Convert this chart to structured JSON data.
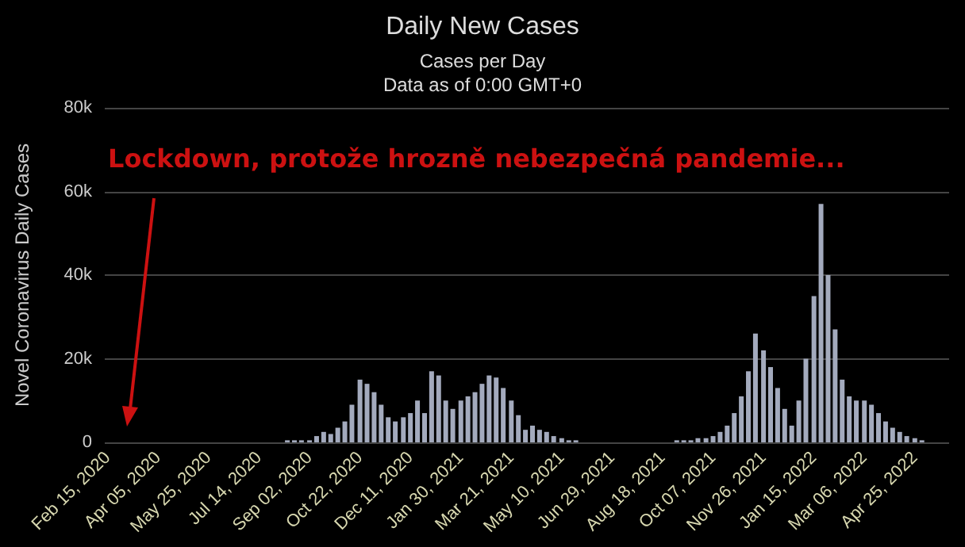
{
  "chart_data": {
    "type": "bar",
    "title": "Daily New Cases",
    "subtitle": "Cases per Day\nData as of 0:00 GMT+0",
    "ylabel": "Novel Coronavirus Daily Cases",
    "annotations": [
      "Lockdown, protože hrozně nebezpečná pandemie..."
    ],
    "x": [
      "2020-02-15",
      "2020-02-22",
      "2020-02-29",
      "2020-03-07",
      "2020-03-14",
      "2020-03-21",
      "2020-03-28",
      "2020-04-05",
      "2020-04-12",
      "2020-04-19",
      "2020-04-26",
      "2020-05-03",
      "2020-05-10",
      "2020-05-17",
      "2020-05-25",
      "2020-06-01",
      "2020-06-08",
      "2020-06-15",
      "2020-06-22",
      "2020-06-29",
      "2020-07-06",
      "2020-07-14",
      "2020-07-21",
      "2020-07-28",
      "2020-08-04",
      "2020-08-11",
      "2020-08-18",
      "2020-08-25",
      "2020-09-02",
      "2020-09-09",
      "2020-09-16",
      "2020-09-23",
      "2020-09-30",
      "2020-10-07",
      "2020-10-14",
      "2020-10-22",
      "2020-10-29",
      "2020-11-05",
      "2020-11-12",
      "2020-11-19",
      "2020-11-26",
      "2020-12-04",
      "2020-12-11",
      "2020-12-18",
      "2020-12-25",
      "2021-01-01",
      "2021-01-08",
      "2021-01-15",
      "2021-01-22",
      "2021-01-30",
      "2021-02-06",
      "2021-02-13",
      "2021-02-20",
      "2021-02-27",
      "2021-03-06",
      "2021-03-13",
      "2021-03-21",
      "2021-03-28",
      "2021-04-04",
      "2021-04-11",
      "2021-04-18",
      "2021-04-25",
      "2021-05-02",
      "2021-05-10",
      "2021-05-17",
      "2021-05-24",
      "2021-05-31",
      "2021-06-07",
      "2021-06-14",
      "2021-06-21",
      "2021-06-29",
      "2021-07-06",
      "2021-07-13",
      "2021-07-20",
      "2021-07-27",
      "2021-08-03",
      "2021-08-10",
      "2021-08-18",
      "2021-08-25",
      "2021-09-01",
      "2021-09-08",
      "2021-09-15",
      "2021-09-22",
      "2021-09-30",
      "2021-10-07",
      "2021-10-14",
      "2021-10-21",
      "2021-10-28",
      "2021-11-04",
      "2021-11-11",
      "2021-11-18",
      "2021-11-26",
      "2021-12-03",
      "2021-12-10",
      "2021-12-17",
      "2021-12-24",
      "2021-12-31",
      "2022-01-07",
      "2022-01-15",
      "2022-01-22",
      "2022-01-29",
      "2022-02-05",
      "2022-02-12",
      "2022-02-19",
      "2022-02-26",
      "2022-03-06",
      "2022-03-13",
      "2022-03-20",
      "2022-03-27",
      "2022-04-03",
      "2022-04-10",
      "2022-04-17",
      "2022-04-25",
      "2022-05-02",
      "2022-05-09"
    ],
    "series": [
      {
        "color": "#a3aabd",
        "values": [
          0,
          0,
          0,
          0,
          0,
          0,
          0,
          0,
          0,
          0,
          0,
          0,
          0,
          0,
          0,
          0,
          0,
          0,
          0,
          0,
          0,
          0,
          0,
          0,
          0,
          500,
          500,
          500,
          500,
          1500,
          2500,
          2000,
          3500,
          5000,
          9000,
          15000,
          14000,
          12000,
          9000,
          6000,
          5000,
          6000,
          7000,
          10000,
          7000,
          17000,
          16000,
          10000,
          8000,
          10000,
          11000,
          12000,
          14000,
          16000,
          15500,
          13000,
          10000,
          6500,
          3000,
          4000,
          3000,
          2500,
          1500,
          1000,
          500,
          500,
          0,
          0,
          0,
          0,
          0,
          0,
          0,
          0,
          0,
          0,
          0,
          0,
          0,
          500,
          500,
          500,
          1000,
          1000,
          1500,
          2500,
          4000,
          7000,
          11000,
          17000,
          26000,
          22000,
          18000,
          13000,
          8000,
          4000,
          10000,
          20000,
          35000,
          57000,
          40000,
          27000,
          15000,
          11000,
          10000,
          10000,
          9000,
          7000,
          5000,
          3500,
          2500,
          1500,
          1000,
          500,
          0
        ]
      }
    ],
    "xlim": [
      "2020-02-12",
      "2022-05-29"
    ],
    "xticks": [
      {
        "value": "2020-02-15",
        "label": "Feb 15, 2020"
      },
      {
        "value": "2020-04-05",
        "label": "Apr 05, 2020"
      },
      {
        "value": "2020-05-25",
        "label": "May 25, 2020"
      },
      {
        "value": "2020-07-14",
        "label": "Jul 14, 2020"
      },
      {
        "value": "2020-09-02",
        "label": "Sep 02, 2020"
      },
      {
        "value": "2020-10-22",
        "label": "Oct 22, 2020"
      },
      {
        "value": "2020-12-11",
        "label": "Dec 11, 2020"
      },
      {
        "value": "2021-01-30",
        "label": "Jan 30, 2021"
      },
      {
        "value": "2021-03-21",
        "label": "Mar 21, 2021"
      },
      {
        "value": "2021-05-10",
        "label": "May 10, 2021"
      },
      {
        "value": "2021-06-29",
        "label": "Jun 29, 2021"
      },
      {
        "value": "2021-08-18",
        "label": "Aug 18, 2021"
      },
      {
        "value": "2021-10-07",
        "label": "Oct 07, 2021"
      },
      {
        "value": "2021-11-26",
        "label": "Nov 26, 2021"
      },
      {
        "value": "2022-01-15",
        "label": "Jan 15, 2022"
      },
      {
        "value": "2022-03-06",
        "label": "Mar 06, 2022"
      },
      {
        "value": "2022-04-25",
        "label": "Apr 25, 2022"
      }
    ],
    "ylim": [
      0,
      80000
    ],
    "yticks": [
      0,
      {
        "value": 20000,
        "label": "20k"
      },
      {
        "value": 40000,
        "label": "40k"
      },
      {
        "value": 60000,
        "label": "60k"
      },
      {
        "value": 80000,
        "label": "80k"
      }
    ],
    "grid": "y"
  }
}
